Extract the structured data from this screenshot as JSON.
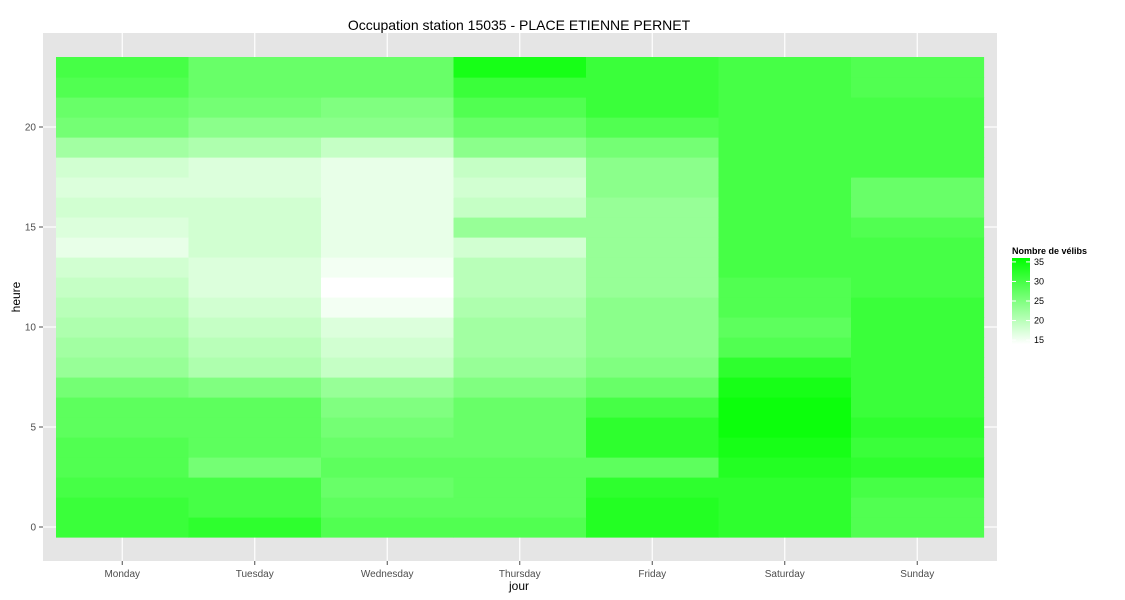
{
  "chart_data": {
    "type": "heatmap",
    "title": "Occupation station 15035 - PLACE ETIENNE PERNET",
    "xlabel": "jour",
    "ylabel": "heure",
    "x_categories": [
      "Monday",
      "Tuesday",
      "Wednesday",
      "Thursday",
      "Friday",
      "Saturday",
      "Sunday"
    ],
    "y_range": [
      -0.5,
      23.5
    ],
    "y_ticks": [
      0,
      5,
      10,
      15,
      20
    ],
    "grid": true,
    "legend": {
      "title": "Nombre de vélibs",
      "placement": "right",
      "min": 14,
      "max": 36,
      "ticks": [
        15,
        20,
        25,
        30,
        35
      ],
      "low_color": "#ffffff",
      "high_color": "#00ff00"
    },
    "values": [
      [
        31,
        32,
        29,
        29,
        33,
        32,
        29
      ],
      [
        31,
        30,
        28,
        28,
        33,
        32,
        29
      ],
      [
        30,
        30,
        27,
        28,
        32,
        32,
        30
      ],
      [
        29,
        26,
        28,
        28,
        28,
        33,
        32
      ],
      [
        29,
        28,
        27,
        27,
        32,
        34,
        31
      ],
      [
        28,
        28,
        26,
        27,
        32,
        35,
        32
      ],
      [
        28,
        28,
        25,
        27,
        30,
        35,
        31
      ],
      [
        26,
        25,
        23,
        25,
        27,
        34,
        31
      ],
      [
        23,
        21,
        19,
        23,
        25,
        32,
        31
      ],
      [
        22,
        20,
        18,
        22,
        24,
        29,
        31
      ],
      [
        21,
        19,
        17,
        22,
        24,
        28,
        31
      ],
      [
        20,
        18,
        15,
        21,
        24,
        29,
        31
      ],
      [
        19,
        17,
        14,
        20,
        23,
        29,
        30
      ],
      [
        18,
        17,
        15,
        20,
        23,
        30,
        30
      ],
      [
        16,
        18,
        16,
        18,
        23,
        30,
        30
      ],
      [
        17,
        18,
        16,
        23,
        23,
        30,
        29
      ],
      [
        18,
        18,
        16,
        19,
        23,
        30,
        27
      ],
      [
        17,
        17,
        16,
        18,
        24,
        30,
        27
      ],
      [
        18,
        17,
        16,
        19,
        24,
        30,
        30
      ],
      [
        22,
        21,
        19,
        24,
        26,
        30,
        30
      ],
      [
        26,
        24,
        24,
        27,
        29,
        30,
        30
      ],
      [
        27,
        26,
        25,
        29,
        31,
        30,
        30
      ],
      [
        29,
        27,
        27,
        31,
        31,
        30,
        29
      ],
      [
        30,
        27,
        27,
        34,
        31,
        30,
        29
      ]
    ]
  }
}
